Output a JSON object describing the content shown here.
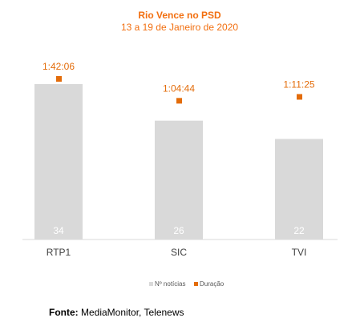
{
  "chart_data": {
    "type": "bar",
    "title": "Rio Vence no PSD",
    "subtitle": "13 a 19 de Janeiro de 2020",
    "categories": [
      "RTP1",
      "SIC",
      "TVI"
    ],
    "series": [
      {
        "name": "Nº notícias",
        "type": "bar",
        "values": [
          34,
          26,
          22
        ],
        "labels": [
          "34",
          "26",
          "22"
        ]
      },
      {
        "name": "Duração",
        "type": "scatter",
        "values": [
          "1:42:06",
          "1:04:44",
          "1:11:25"
        ],
        "labels": [
          "1:42:06",
          "1:04:44",
          "1:11:25"
        ]
      }
    ],
    "legend": "bottom",
    "grid": false
  },
  "colors": {
    "bar": "#d9d9d9",
    "bar_label": "#ffffff",
    "accent": "#e36c0a",
    "title": "#f26f10"
  },
  "source": {
    "label": "Fonte:",
    "text": "MediaMonitor, Telenews"
  }
}
